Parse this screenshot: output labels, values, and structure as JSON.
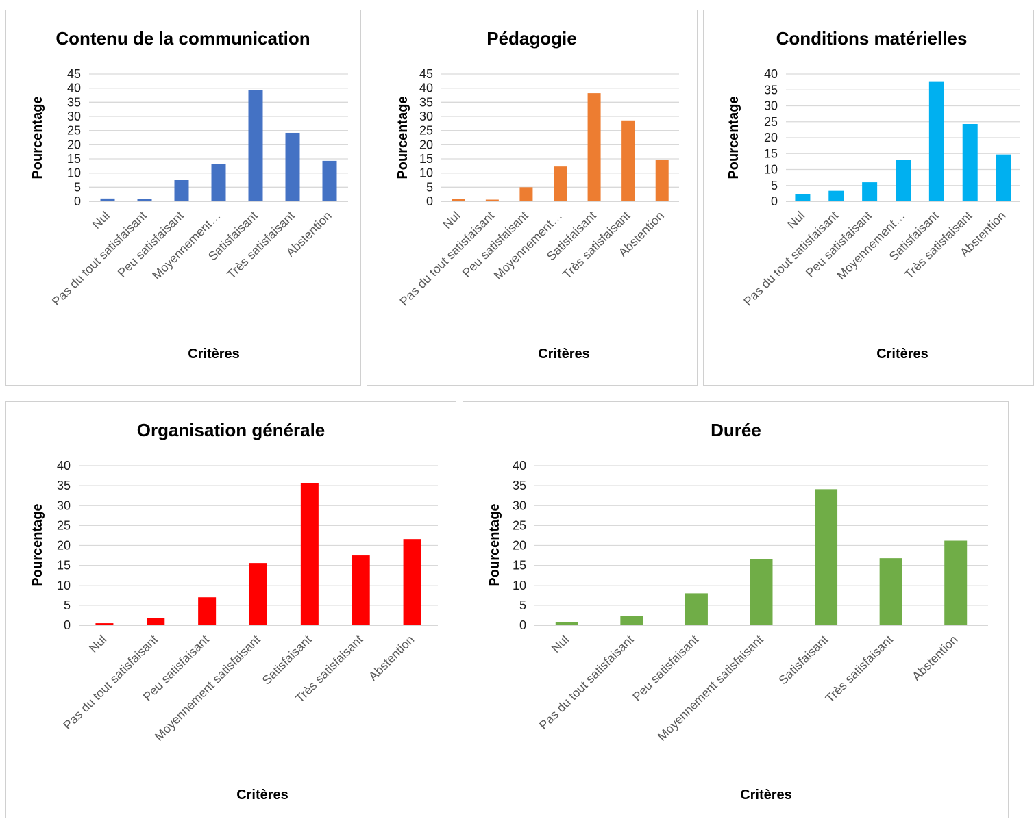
{
  "chart_data": [
    {
      "type": "bar",
      "title": "Contenu de la communication",
      "xlabel": "Critères",
      "ylabel": "Pourcentage",
      "ylim": [
        0,
        45
      ],
      "y_step": 5,
      "grid": true,
      "color": "#4472C4",
      "categories": [
        "Nul",
        "Pas du tout satisfaisant",
        "Peu satisfaisant",
        "Moyennement…",
        "Satisfaisant",
        "Très satisfaisant",
        "Abstention"
      ],
      "values": [
        1.0,
        0.8,
        7.5,
        13.3,
        39.2,
        24.2,
        14.3
      ]
    },
    {
      "type": "bar",
      "title": "Pédagogie",
      "xlabel": "Critères",
      "ylabel": "Pourcentage",
      "ylim": [
        0,
        45
      ],
      "y_step": 5,
      "grid": true,
      "color": "#ED7D31",
      "categories": [
        "Nul",
        "Pas du tout satisfaisant",
        "Peu satisfaisant",
        "Moyennement…",
        "Satisfaisant",
        "Très satisfaisant",
        "Abstention"
      ],
      "values": [
        0.8,
        0.6,
        5.0,
        12.3,
        38.2,
        28.6,
        14.7
      ]
    },
    {
      "type": "bar",
      "title": "Conditions matérielles",
      "xlabel": "Critères",
      "ylabel": "Pourcentage",
      "ylim": [
        0,
        40
      ],
      "y_step": 5,
      "grid": true,
      "color": "#00B0F0",
      "categories": [
        "Nul",
        "Pas du tout satisfaisant",
        "Peu satisfaisant",
        "Moyennement…",
        "Satisfaisant",
        "Très satisfaisant",
        "Abstention"
      ],
      "values": [
        2.3,
        3.3,
        6.0,
        13.1,
        37.5,
        24.3,
        14.7
      ]
    },
    {
      "type": "bar",
      "title": "Organisation générale",
      "xlabel": "Critères",
      "ylabel": "Pourcentage",
      "ylim": [
        0,
        40
      ],
      "y_step": 5,
      "grid": true,
      "color": "#FF0000",
      "categories": [
        "Nul",
        "Pas du tout satisfaisant",
        "Peu satisfaisant",
        "Moyennement satisfaisant",
        "Satisfaisant",
        "Très satisfaisant",
        "Abstention"
      ],
      "values": [
        0.5,
        1.8,
        7.0,
        15.6,
        35.7,
        17.5,
        21.6
      ]
    },
    {
      "type": "bar",
      "title": "Durée",
      "xlabel": "Critères",
      "ylabel": "Pourcentage",
      "ylim": [
        0,
        40
      ],
      "y_step": 5,
      "grid": true,
      "color": "#70AD47",
      "categories": [
        "Nul",
        "Pas du tout satisfaisant",
        "Peu satisfaisant",
        "Moyennement satisfaisant",
        "Satisfaisant",
        "Très satisfaisant",
        "Abstention"
      ],
      "values": [
        0.8,
        2.3,
        8.0,
        16.5,
        34.1,
        16.8,
        21.2
      ]
    }
  ]
}
